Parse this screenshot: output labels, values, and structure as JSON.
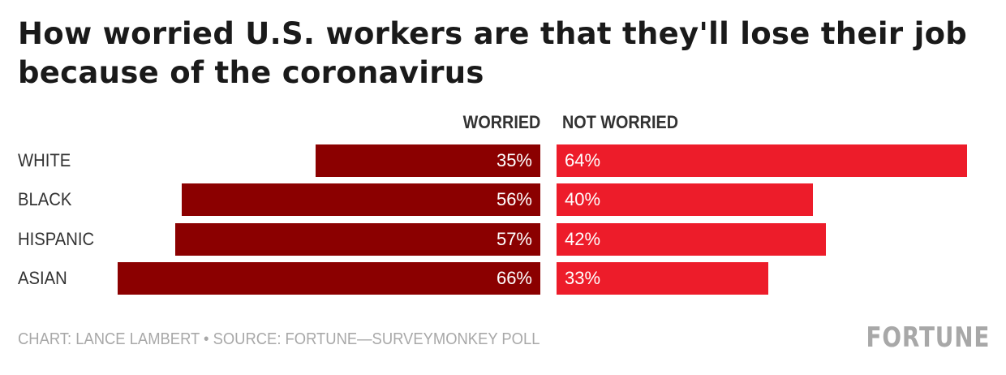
{
  "title": "How worried U.S. workers are that they'll lose their job because of the coronavirus",
  "footer": {
    "credit": "CHART: LANCE LAMBERT • SOURCE: FORTUNE—SURVEYMONKEY POLL",
    "brand": "FORTUNE"
  },
  "colors": {
    "worried": "#8b0000",
    "not_worried": "#ed1c2a",
    "text": "#333333",
    "muted": "#a8a8a8"
  },
  "chart_data": {
    "type": "bar",
    "orientation": "horizontal-diverging",
    "title": "How worried U.S. workers are that they'll lose their job because of the coronavirus",
    "categories": [
      "WHITE",
      "BLACK",
      "HISPANIC",
      "ASIAN"
    ],
    "series": [
      {
        "name": "WORRIED",
        "values": [
          35,
          56,
          57,
          66
        ],
        "labels": [
          "35%",
          "56%",
          "57%",
          "66%"
        ]
      },
      {
        "name": "NOT WORRIED",
        "values": [
          64,
          40,
          42,
          33
        ],
        "labels": [
          "64%",
          "40%",
          "42%",
          "33%"
        ]
      }
    ],
    "unit": "%",
    "xlim": [
      0,
      100
    ],
    "grid": false,
    "legend_position": "top"
  }
}
